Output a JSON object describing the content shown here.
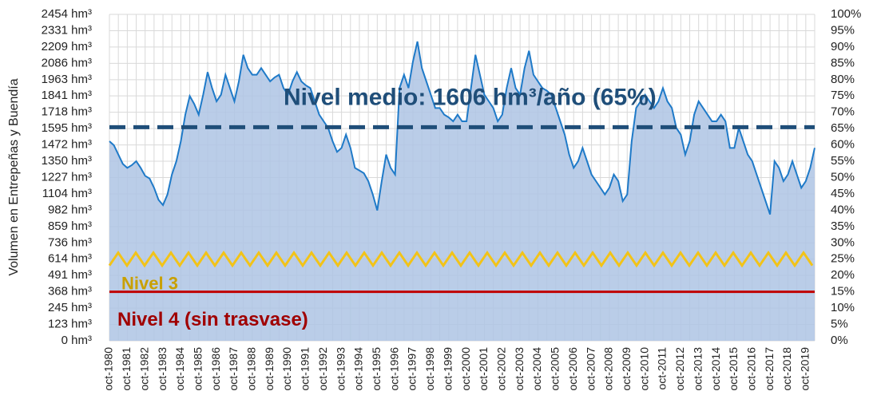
{
  "chart_data": {
    "type": "area",
    "y_axis_title": "Volumen en Entrepeñas y Buendía",
    "categories": [
      "oct-1980",
      null,
      null,
      null,
      "oct-1981",
      null,
      null,
      null,
      "oct-1982",
      null,
      null,
      null,
      "oct-1983",
      null,
      null,
      null,
      "oct-1984",
      null,
      null,
      null,
      "oct-1985",
      null,
      null,
      null,
      "oct-1986",
      null,
      null,
      null,
      "oct-1987",
      null,
      null,
      null,
      "oct-1988",
      null,
      null,
      null,
      "oct-1989",
      null,
      null,
      null,
      "oct-1990",
      null,
      null,
      null,
      "oct-1991",
      null,
      null,
      null,
      "oct-1992",
      null,
      null,
      null,
      "oct-1993",
      null,
      null,
      null,
      "oct-1994",
      null,
      null,
      null,
      "oct-1995",
      null,
      null,
      null,
      "oct-1996",
      null,
      null,
      null,
      "oct-1997",
      null,
      null,
      null,
      "oct-1998",
      null,
      null,
      null,
      "oct-1999",
      null,
      null,
      null,
      "oct-2000",
      null,
      null,
      null,
      "oct-2001",
      null,
      null,
      null,
      "oct-2002",
      null,
      null,
      null,
      "oct-2003",
      null,
      null,
      null,
      "oct-2004",
      null,
      null,
      null,
      "oct-2005",
      null,
      null,
      null,
      "oct-2006",
      null,
      null,
      null,
      "oct-2007",
      null,
      null,
      null,
      "oct-2008",
      null,
      null,
      null,
      "oct-2009",
      null,
      null,
      null,
      "oct-2010",
      null,
      null,
      null,
      "oct-2011",
      null,
      null,
      null,
      "oct-2012",
      null,
      null,
      null,
      "oct-2013",
      null,
      null,
      null,
      "oct-2014",
      null,
      null,
      null,
      "oct-2015",
      null,
      null,
      null,
      "oct-2016",
      null,
      null,
      null,
      "oct-2017",
      null,
      null,
      null,
      "oct-2018",
      null,
      null,
      null,
      "oct-2019",
      null,
      null
    ],
    "values": [
      1500,
      1470,
      1400,
      1330,
      1300,
      1320,
      1350,
      1300,
      1240,
      1220,
      1150,
      1060,
      1020,
      1100,
      1250,
      1350,
      1500,
      1700,
      1840,
      1780,
      1700,
      1850,
      2020,
      1900,
      1800,
      1850,
      2000,
      1900,
      1800,
      1950,
      2150,
      2050,
      2000,
      2000,
      2050,
      2000,
      1950,
      1980,
      2000,
      1900,
      1850,
      1950,
      2020,
      1950,
      1920,
      1900,
      1800,
      1700,
      1650,
      1600,
      1500,
      1420,
      1450,
      1550,
      1450,
      1300,
      1280,
      1260,
      1200,
      1100,
      980,
      1200,
      1400,
      1300,
      1250,
      1900,
      2000,
      1900,
      2100,
      2250,
      2050,
      1950,
      1850,
      1750,
      1750,
      1700,
      1680,
      1650,
      1700,
      1650,
      1650,
      1900,
      2150,
      2000,
      1850,
      1800,
      1750,
      1650,
      1700,
      1900,
      2050,
      1900,
      1850,
      2050,
      2180,
      2000,
      1950,
      1900,
      1880,
      1850,
      1750,
      1650,
      1550,
      1400,
      1300,
      1350,
      1450,
      1350,
      1250,
      1200,
      1150,
      1100,
      1150,
      1250,
      1200,
      1050,
      1100,
      1500,
      1750,
      1800,
      1850,
      1800,
      1750,
      1800,
      1900,
      1800,
      1750,
      1600,
      1550,
      1400,
      1500,
      1700,
      1800,
      1750,
      1700,
      1650,
      1650,
      1700,
      1650,
      1450,
      1450,
      1600,
      1500,
      1400,
      1350,
      1250,
      1150,
      1050,
      950,
      1350,
      1300,
      1200,
      1250,
      1350,
      1250,
      1150,
      1200,
      1300,
      1450
    ],
    "color": "#1f7ac8",
    "fill": "#aec4e4",
    "ylim": [
      0,
      2454
    ],
    "yticks": [
      {
        "value": 0,
        "label": "0 hm³"
      },
      {
        "value": 123,
        "label": "123 hm³"
      },
      {
        "value": 245,
        "label": "245 hm³"
      },
      {
        "value": 368,
        "label": "368 hm³"
      },
      {
        "value": 491,
        "label": "491 hm³"
      },
      {
        "value": 614,
        "label": "614 hm³"
      },
      {
        "value": 736,
        "label": "736 hm³"
      },
      {
        "value": 859,
        "label": "859 hm³"
      },
      {
        "value": 982,
        "label": "982 hm³"
      },
      {
        "value": 1104,
        "label": "1104 hm³"
      },
      {
        "value": 1227,
        "label": "1227 hm³"
      },
      {
        "value": 1350,
        "label": "1350 hm³"
      },
      {
        "value": 1472,
        "label": "1472 hm³"
      },
      {
        "value": 1595,
        "label": "1595 hm³"
      },
      {
        "value": 1718,
        "label": "1718 hm³"
      },
      {
        "value": 1841,
        "label": "1841 hm³"
      },
      {
        "value": 1963,
        "label": "1963 hm³"
      },
      {
        "value": 2086,
        "label": "2086 hm³"
      },
      {
        "value": 2209,
        "label": "2209 hm³"
      },
      {
        "value": 2331,
        "label": "2331 hm³"
      },
      {
        "value": 2454,
        "label": "2454 hm³"
      }
    ],
    "y2lim": [
      0,
      100
    ],
    "y2ticks": [
      {
        "value": 0,
        "label": "0%"
      },
      {
        "value": 5,
        "label": "5%"
      },
      {
        "value": 10,
        "label": "10%"
      },
      {
        "value": 15,
        "label": "15%"
      },
      {
        "value": 20,
        "label": "20%"
      },
      {
        "value": 25,
        "label": "25%"
      },
      {
        "value": 30,
        "label": "30%"
      },
      {
        "value": 35,
        "label": "35%"
      },
      {
        "value": 40,
        "label": "40%"
      },
      {
        "value": 45,
        "label": "45%"
      },
      {
        "value": 50,
        "label": "50%"
      },
      {
        "value": 55,
        "label": "55%"
      },
      {
        "value": 60,
        "label": "60%"
      },
      {
        "value": 65,
        "label": "65%"
      },
      {
        "value": 70,
        "label": "70%"
      },
      {
        "value": 75,
        "label": "75%"
      },
      {
        "value": 80,
        "label": "80%"
      },
      {
        "value": 85,
        "label": "85%"
      },
      {
        "value": 90,
        "label": "90%"
      },
      {
        "value": 95,
        "label": "95%"
      },
      {
        "value": 100,
        "label": "100%"
      }
    ],
    "grid": true,
    "reference_lines": [
      {
        "label": "Nivel medio: 1606 hm³/año (65%)",
        "value": 1606,
        "color": "#1f4e79",
        "style": "dashed"
      },
      {
        "label": "Nivel 3",
        "value": 614,
        "color": "#f2c318",
        "style": "zigzag"
      },
      {
        "label": "Nivel 4 (sin trasvase)",
        "value": 368,
        "color": "#c00000",
        "style": "solid"
      }
    ]
  }
}
